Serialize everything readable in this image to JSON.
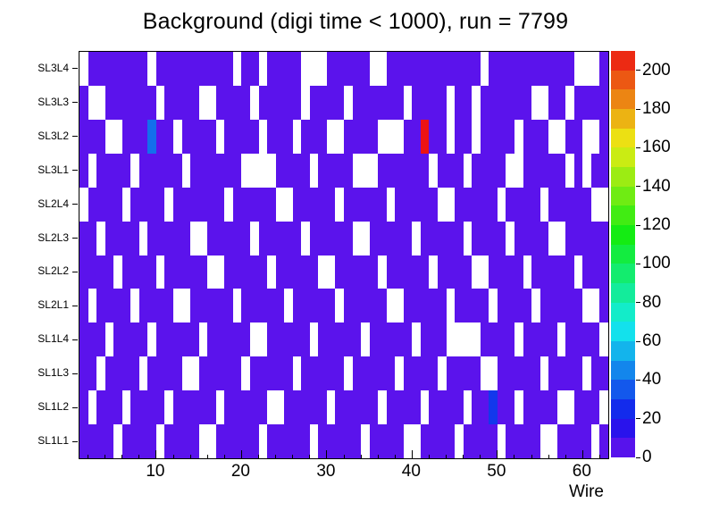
{
  "chart_data": {
    "type": "heatmap",
    "title": "Background (digi time < 1000), run = 7799",
    "xlabel": "Wire",
    "x_range": [
      1,
      63
    ],
    "x_major_ticks": [
      10,
      20,
      30,
      40,
      50,
      60
    ],
    "x_minor_tick_step": 2,
    "rows_top_to_bottom": [
      "SL3L4",
      "SL3L3",
      "SL3L2",
      "SL3L1",
      "SL2L4",
      "SL2L3",
      "SL2L2",
      "SL2L1",
      "SL1L4",
      "SL1L3",
      "SL1L2",
      "SL1L1"
    ],
    "n_wires": 62,
    "zmin": 0,
    "zmax": 210,
    "base_value": 4,
    "colorbar_ticks": [
      0,
      20,
      40,
      60,
      80,
      100,
      120,
      140,
      160,
      180,
      200
    ],
    "palette": {
      "style": "root-rainbow",
      "hue_start": 265,
      "hue_end": 0,
      "saturation": 85,
      "lightness": 50,
      "n_bands": 21,
      "low_color": "#6a13ec",
      "high_color": "#ec1313",
      "empty_color": "#ffffff"
    },
    "grid": [
      ".XXXXXXX.XXXXXXXXX.XX.XXXX...XXXXX..XXXXXXXXXXX.XXXXXXXXXX...X",
      "X..XXXXXX.XXXX..XXXX.XXXXX.XXXX.XXXXXX.XXXX.XX.XXXXXX..XX.XXXX",
      "XXX..XXXXXX.XXXX.XXXX.XXX.XXX..XXXX...XXXXX.XX.XXXX.XXX..XX..X",
      "X.XXXX.XXXXX.XXXXXX....XXXX.XXXX...XXXXXX.XXX.XXXX..XXXXX.X.XX",
      ".XXXX.XXXX.XXXXXX.XXXXX..XXXXX.XXXXX.XXXXX..XXXXX.XXXX.XXXXX..",
      "XX.XXXX.XXXXX..XXXXX.XXXXX.XXXXX..XXXXX.XXXXX.XXXX.XXXX..XXXXX",
      "XXXX.XXXX.XXXXX..XXXXX.XXXXX..XXXXX.XXXXX.XXXX..XXXX.XXXXX.XXX",
      "X.XXXX.XXXX..XXXXX.XXXXX.XXXXX.XXXXX..XXXXX.XXXX.XXXX.XXXXX..X",
      "XXX.XXXX.XXXXX.XXXXX..XXXXX.XXXXX.XXXXX.XXX....XXXX.XXXX.XXXX.",
      "XX.XXXX.XXXX..XXXXX.XXXXX.XXXXX.XXXXX.XXXX.XXXX..XXXXX.XXXX.XX",
      "X.XXX.XXXX.XXXXX.XXXXX..XXXXX.XXXXX.XXXX.XXXX.XXXXX.XXXX..XXX.",
      "XXXX.XXXX.XXXX..XXXXX.XXXXX.XXXXX.XXXX..XXXX.XXXX.XXXX..XXXX.X"
    ],
    "hot_cells": [
      {
        "row": "SL3L2",
        "wire": 9,
        "value": 40
      },
      {
        "row": "SL3L2",
        "wire": 41,
        "value": 210
      },
      {
        "row": "SL1L2",
        "wire": 49,
        "value": 28
      }
    ]
  }
}
